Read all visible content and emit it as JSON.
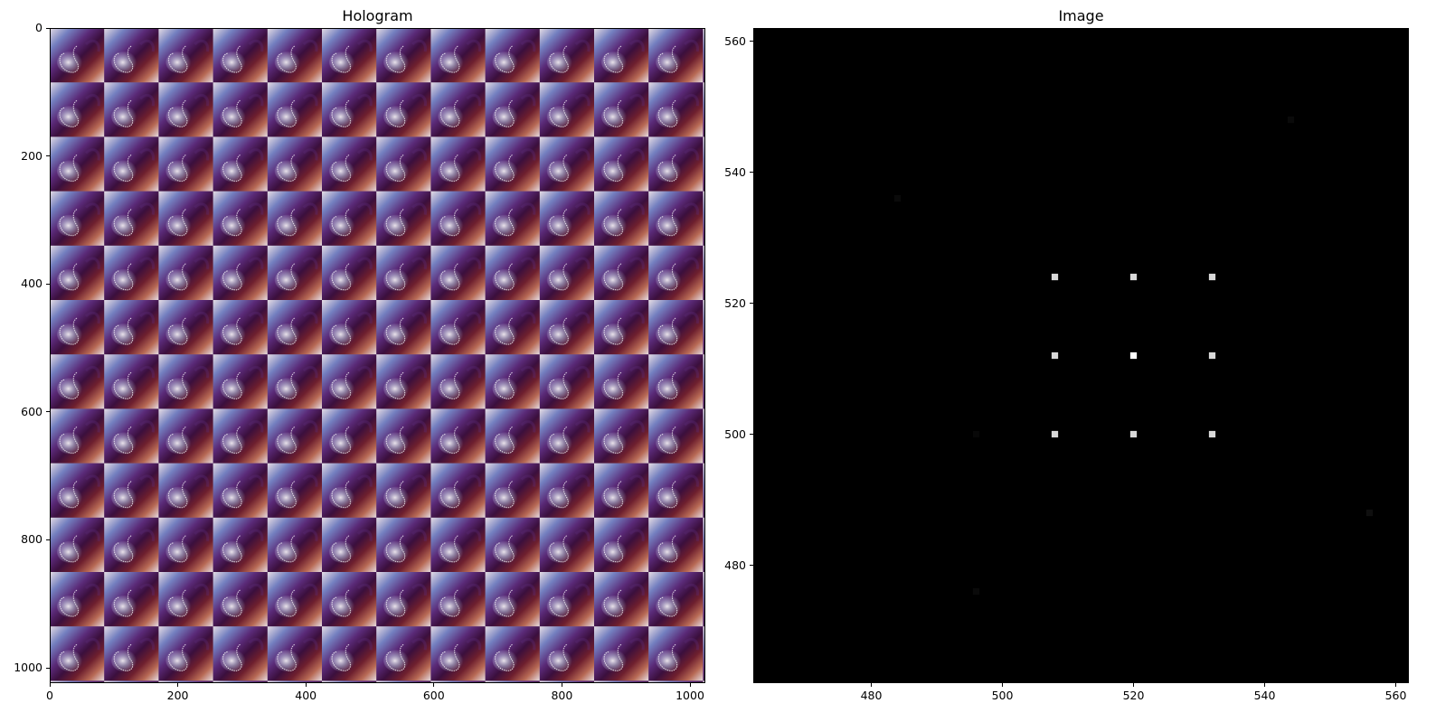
{
  "chart_data": [
    {
      "type": "heatmap",
      "title": "Hologram",
      "xlabel": "",
      "ylabel": "",
      "xlim": [
        0,
        1024
      ],
      "ylim": [
        1024,
        0
      ],
      "xticks": [
        0,
        200,
        400,
        600,
        800,
        1000
      ],
      "yticks": [
        0,
        200,
        400,
        600,
        800,
        1000
      ],
      "colormap": "twilight_shifted",
      "pattern": "periodic phase hologram, period about 85 px in both x and y"
    },
    {
      "type": "heatmap",
      "title": "Image",
      "xlabel": "",
      "ylabel": "",
      "xlim": [
        462,
        562
      ],
      "ylim": [
        462,
        562
      ],
      "xticks": [
        480,
        500,
        520,
        540,
        560
      ],
      "yticks": [
        480,
        500,
        520,
        540,
        560
      ],
      "colormap": "gray",
      "background": "#000000",
      "spots": [
        {
          "x": 508,
          "y": 524,
          "intensity": 0.85
        },
        {
          "x": 520,
          "y": 524,
          "intensity": 0.85
        },
        {
          "x": 532,
          "y": 524,
          "intensity": 0.85
        },
        {
          "x": 508,
          "y": 512,
          "intensity": 0.85
        },
        {
          "x": 520,
          "y": 512,
          "intensity": 1.0
        },
        {
          "x": 532,
          "y": 512,
          "intensity": 0.85
        },
        {
          "x": 508,
          "y": 500,
          "intensity": 0.85
        },
        {
          "x": 520,
          "y": 500,
          "intensity": 0.85
        },
        {
          "x": 532,
          "y": 500,
          "intensity": 0.85
        },
        {
          "x": 544,
          "y": 548,
          "intensity": 0.04
        },
        {
          "x": 484,
          "y": 536,
          "intensity": 0.04
        },
        {
          "x": 556,
          "y": 488,
          "intensity": 0.06
        },
        {
          "x": 496,
          "y": 476,
          "intensity": 0.04
        },
        {
          "x": 496,
          "y": 500,
          "intensity": 0.03
        }
      ]
    }
  ]
}
